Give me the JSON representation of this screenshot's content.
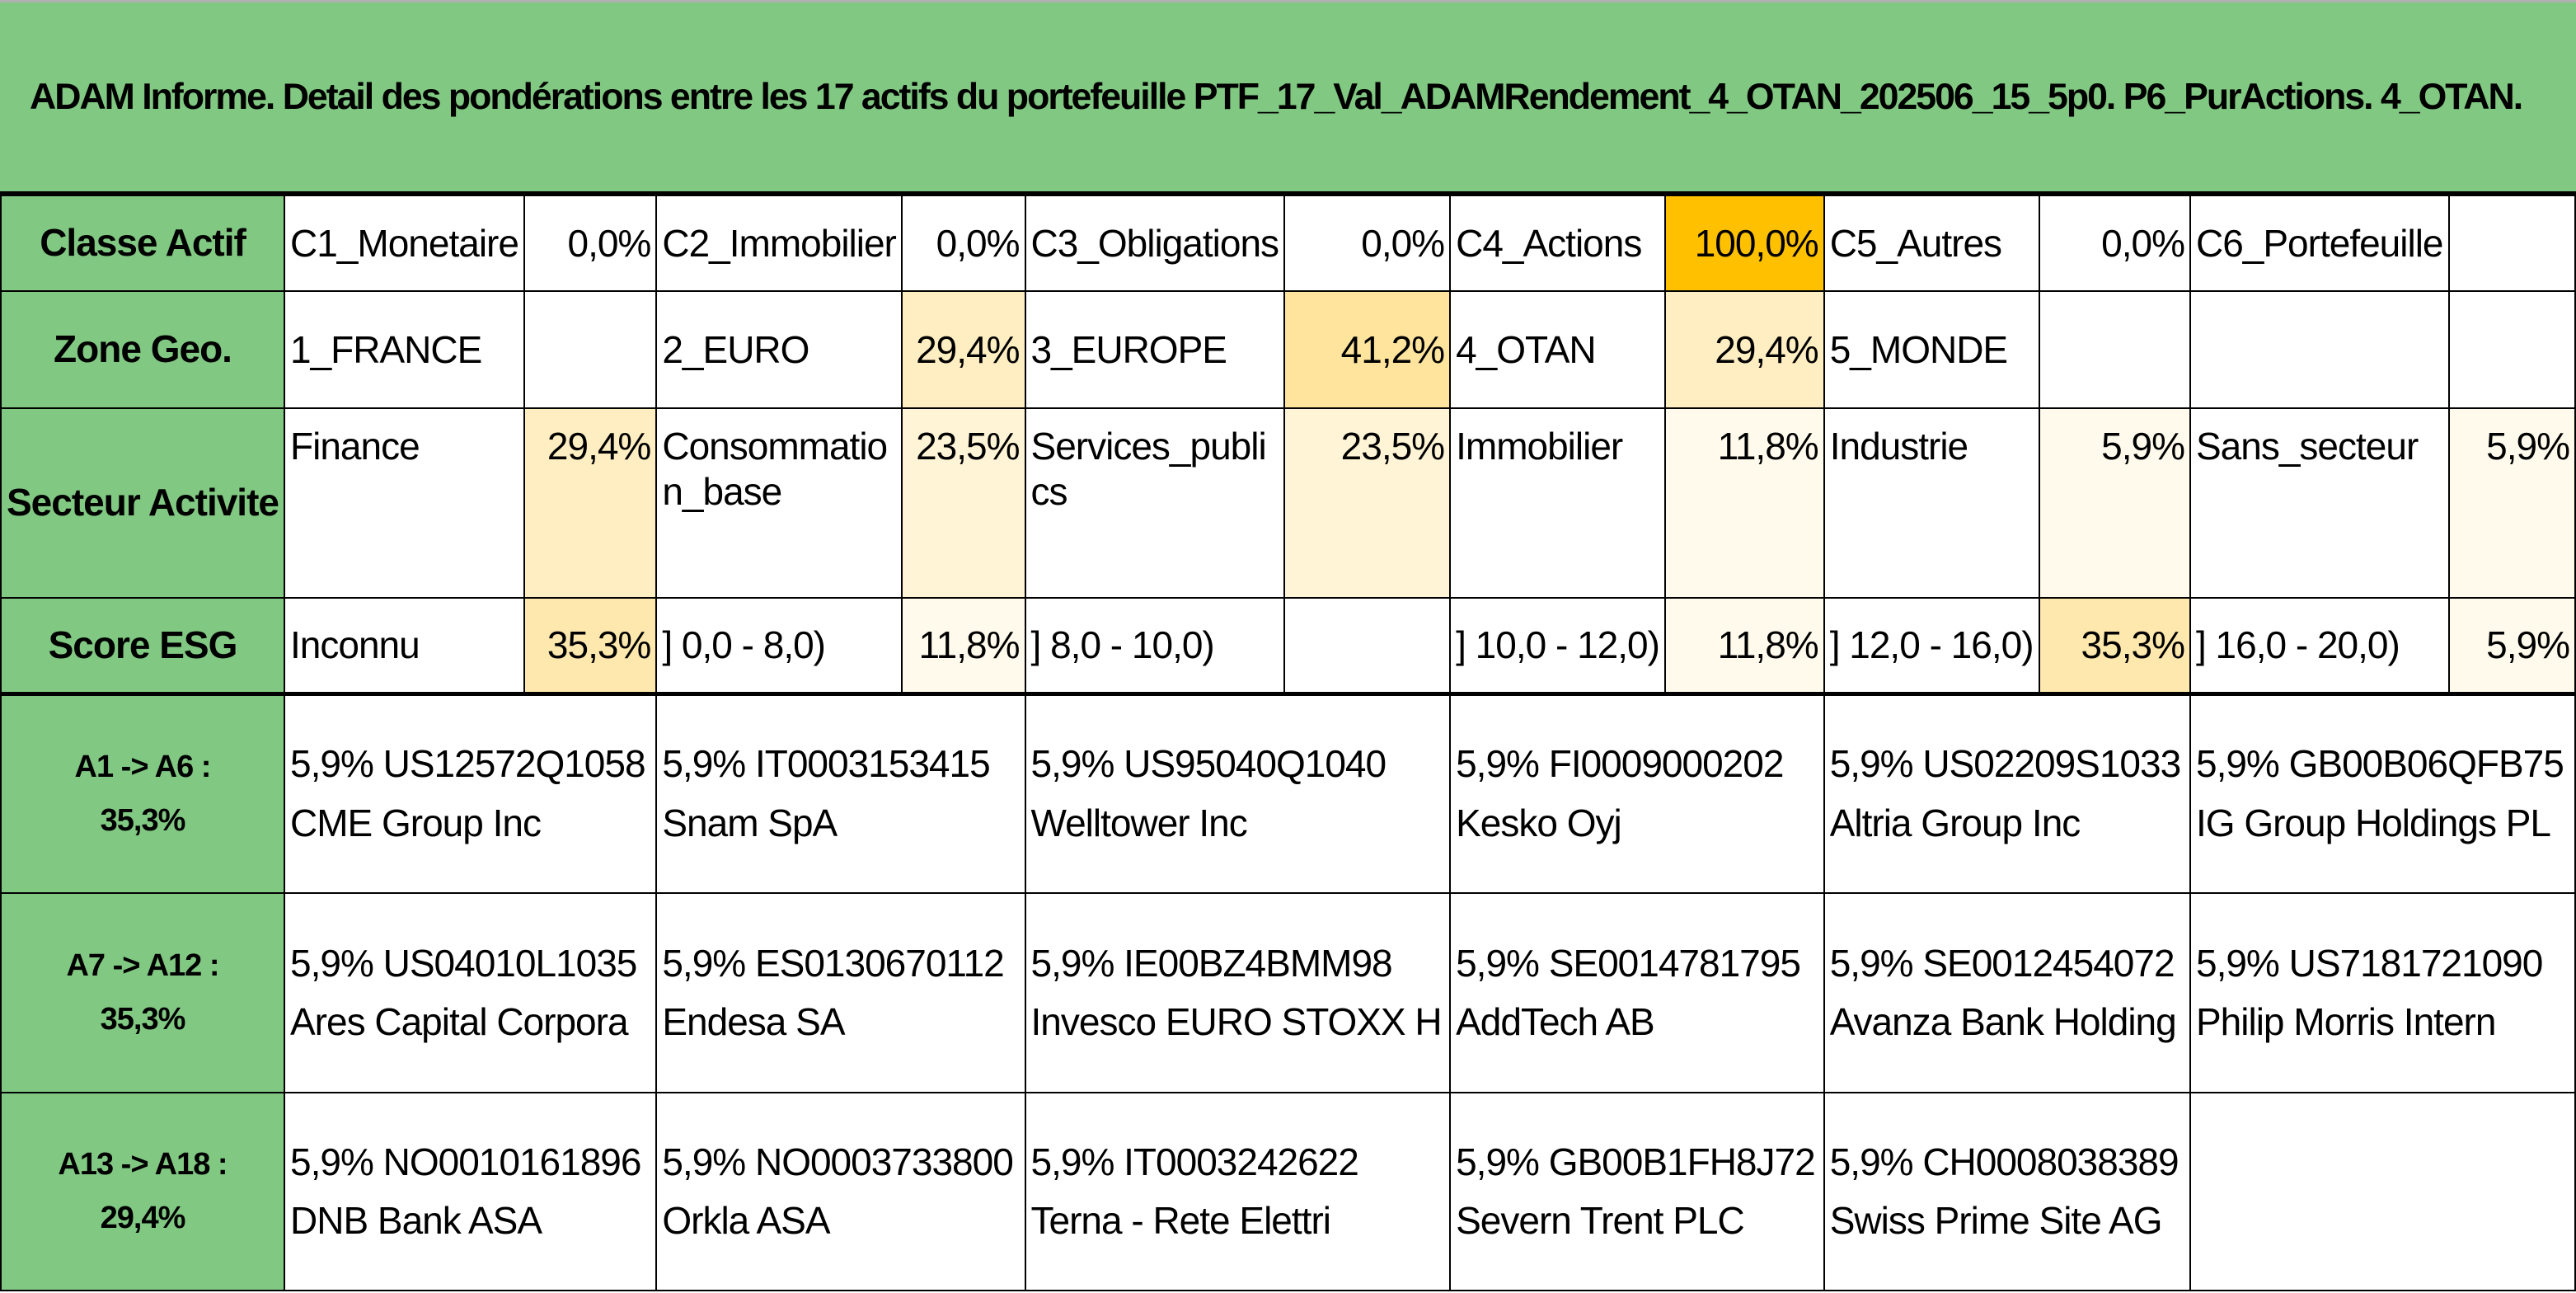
{
  "title": "ADAM Informe. Detail des pondérations entre les 17 actifs du portefeuille PTF_17_Val_ADAMRendement_4_OTAN_202506_15_5p0. P6_PurActions. 4_OTAN.",
  "colors": {
    "header_green": "#81c882",
    "highlight_orange": "#ffc000",
    "weight_light_yellow": "#ffe8ad"
  },
  "classe_actif": {
    "label": "Classe Actif",
    "cells": [
      {
        "name": "C1_Monetaire",
        "value": "0,0%"
      },
      {
        "name": "C2_Immobilier",
        "value": "0,0%"
      },
      {
        "name": "C3_Obligations",
        "value": "0,0%"
      },
      {
        "name": "C4_Actions",
        "value": "100,0%"
      },
      {
        "name": "C5_Autres",
        "value": "0,0%"
      },
      {
        "name": "C6_Portefeuille",
        "value": ""
      }
    ]
  },
  "zone_geo": {
    "label": "Zone Geo.",
    "cells": [
      {
        "name": "1_FRANCE",
        "value": ""
      },
      {
        "name": "2_EURO",
        "value": "29,4%"
      },
      {
        "name": "3_EUROPE",
        "value": "41,2%"
      },
      {
        "name": "4_OTAN",
        "value": "29,4%"
      },
      {
        "name": "5_MONDE",
        "value": ""
      },
      {
        "name": "",
        "value": ""
      }
    ]
  },
  "secteur": {
    "label": "Secteur Activite",
    "cells": [
      {
        "name": "Finance",
        "value": "29,4%"
      },
      {
        "name": "Consommation_base",
        "value": "23,5%"
      },
      {
        "name": "Services_publics",
        "value": "23,5%"
      },
      {
        "name": "Immobilier",
        "value": "11,8%"
      },
      {
        "name": "Industrie",
        "value": "5,9%"
      },
      {
        "name": "Sans_secteur",
        "value": "5,9%"
      }
    ]
  },
  "score_esg": {
    "label": "Score ESG",
    "cells": [
      {
        "name": "Inconnu",
        "value": "35,3%"
      },
      {
        "name": "] 0,0 - 8,0)",
        "value": "11,8%"
      },
      {
        "name": "] 8,0 - 10,0)",
        "value": ""
      },
      {
        "name": "] 10,0 - 12,0)",
        "value": "11,8%"
      },
      {
        "name": "] 12,0 - 16,0)",
        "value": "35,3%"
      },
      {
        "name": "] 16,0 - 20,0)",
        "value": "5,9%"
      }
    ]
  },
  "asset_rows": [
    {
      "label": "A1 -> A6 :",
      "total": "35,3%",
      "assets": [
        {
          "code": "5,9% US12572Q1058",
          "name": "CME Group Inc"
        },
        {
          "code": "5,9% IT0003153415",
          "name": "Snam SpA"
        },
        {
          "code": "5,9% US95040Q1040",
          "name": "Welltower Inc"
        },
        {
          "code": "5,9% FI0009000202",
          "name": "Kesko Oyj"
        },
        {
          "code": "5,9% US02209S1033",
          "name": "Altria Group Inc"
        },
        {
          "code": "5,9% GB00B06QFB75",
          "name": "IG Group Holdings PL"
        }
      ]
    },
    {
      "label": "A7 -> A12 :",
      "total": "35,3%",
      "assets": [
        {
          "code": "5,9% US04010L1035",
          "name": "Ares Capital Corpora"
        },
        {
          "code": "5,9% ES0130670112",
          "name": "Endesa SA"
        },
        {
          "code": "5,9% IE00BZ4BMM98",
          "name": "Invesco EURO STOXX H"
        },
        {
          "code": "5,9% SE0014781795",
          "name": "AddTech AB"
        },
        {
          "code": "5,9% SE0012454072",
          "name": "Avanza Bank Holding"
        },
        {
          "code": "5,9% US7181721090",
          "name": "Philip Morris Intern"
        }
      ]
    },
    {
      "label": "A13 -> A18 :",
      "total": "29,4%",
      "assets": [
        {
          "code": "5,9% NO0010161896",
          "name": "DNB Bank ASA"
        },
        {
          "code": "5,9% NO0003733800",
          "name": "Orkla ASA"
        },
        {
          "code": "5,9% IT0003242622",
          "name": "Terna - Rete Elettri"
        },
        {
          "code": "5,9% GB00B1FH8J72",
          "name": "Severn Trent PLC"
        },
        {
          "code": "5,9% CH0008038389",
          "name": "Swiss Prime Site AG"
        },
        {
          "code": "",
          "name": ""
        }
      ]
    }
  ]
}
